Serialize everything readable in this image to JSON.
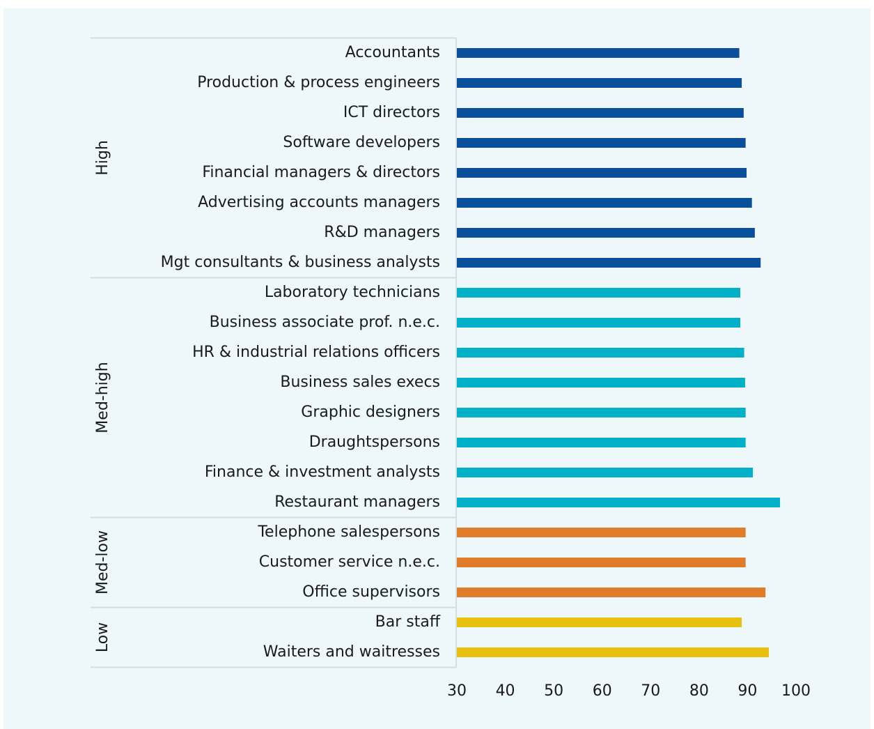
{
  "chart_data": {
    "type": "bar",
    "orientation": "horizontal",
    "xlim": [
      30,
      100
    ],
    "xticks": [
      30,
      40,
      50,
      60,
      70,
      80,
      90,
      100
    ],
    "series": [
      {
        "name": "High",
        "color": "#0a4f9c",
        "categories": [
          "Accountants",
          "Production & process engineers",
          "ICT directors",
          "Software developers",
          "Financial managers & directors",
          "Advertising accounts managers",
          "R&D managers",
          "Mgt consultants & business analysts"
        ],
        "values": [
          88.3,
          88.8,
          89.2,
          89.6,
          89.8,
          90.9,
          91.5,
          92.7
        ]
      },
      {
        "name": "Med-high",
        "color": "#00b0c8",
        "categories": [
          "Laboratory technicians",
          "Business associate prof. n.e.c.",
          "HR & industrial relations officers",
          "Business sales execs",
          "Graphic designers",
          "Draughtspersons",
          "Finance & investment analysts",
          "Restaurant managers"
        ],
        "values": [
          88.5,
          88.5,
          89.3,
          89.5,
          89.6,
          89.6,
          91.1,
          96.7
        ]
      },
      {
        "name": "Med-low",
        "color": "#e07b2a",
        "categories": [
          "Telephone salespersons",
          "Customer service n.e.c.",
          "Office supervisors"
        ],
        "values": [
          89.6,
          89.6,
          93.7
        ]
      },
      {
        "name": "Low",
        "color": "#e8c10e",
        "categories": [
          "Bar staff",
          "Waiters and waitresses"
        ],
        "values": [
          88.8,
          94.4
        ]
      }
    ]
  }
}
